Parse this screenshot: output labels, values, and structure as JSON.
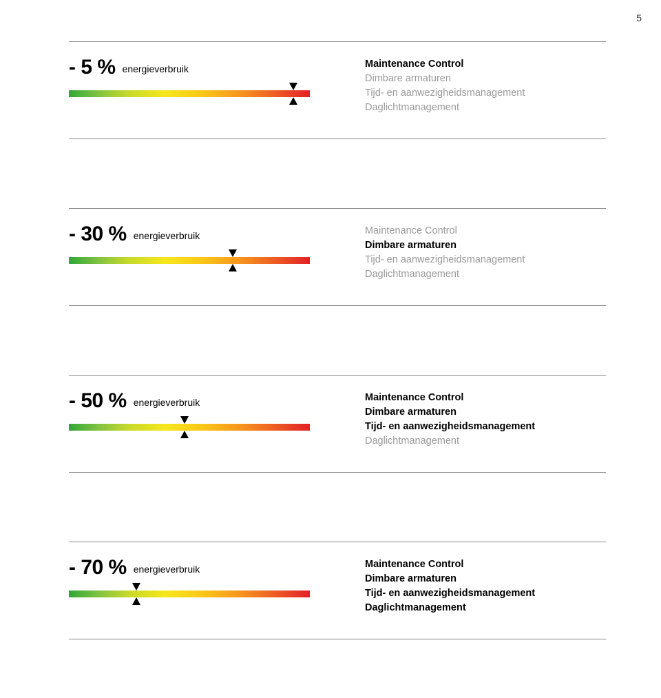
{
  "page_number": "5",
  "features": {
    "f1": "Maintenance Control",
    "f2": "Dimbare armaturen",
    "f3": "Tijd- en aanwezigheidsmanagement",
    "f4": "Daglichtmanagement"
  },
  "sections": [
    {
      "percent": "- 5 %",
      "label": "energieverbruik",
      "marker_percent": 93,
      "active": {
        "f1": true,
        "f2": false,
        "f3": false,
        "f4": false
      }
    },
    {
      "percent": "- 30 %",
      "label": "energieverbruik",
      "marker_percent": 68,
      "active": {
        "f1": false,
        "f2": true,
        "f3": false,
        "f4": false
      }
    },
    {
      "percent": "- 50 %",
      "label": "energieverbruik",
      "marker_percent": 48,
      "active": {
        "f1": true,
        "f2": true,
        "f3": true,
        "f4": false
      }
    },
    {
      "percent": "- 70 %",
      "label": "energieverbruik",
      "marker_percent": 28,
      "active": {
        "f1": true,
        "f2": true,
        "f3": true,
        "f4": true
      }
    }
  ],
  "colors": {
    "active_text": "#000000",
    "inactive_text": "#999999",
    "border": "#888888"
  }
}
